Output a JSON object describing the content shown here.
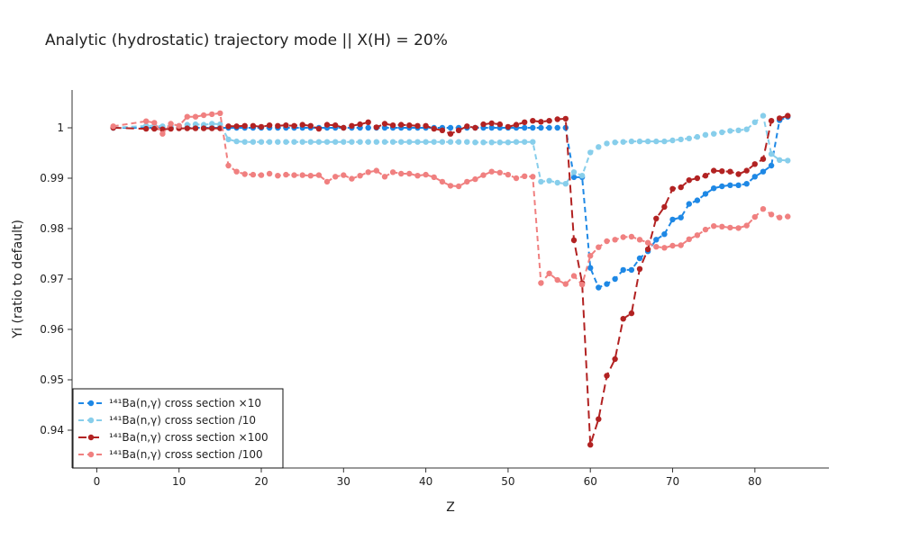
{
  "chart_data": {
    "type": "line",
    "title": "Analytic (hydrostatic) trajectory mode || X(H) = 20%",
    "xlabel": "Z",
    "ylabel": "Yi (ratio to default)",
    "xlim": [
      -3,
      89
    ],
    "ylim": [
      0.9325,
      1.0075
    ],
    "xticks": [
      0,
      10,
      20,
      30,
      40,
      50,
      60,
      70,
      80
    ],
    "yticks": [
      0.94,
      0.95,
      0.96,
      0.97,
      0.98,
      0.99,
      1
    ],
    "ytick_labels": [
      "0.94",
      "0.95",
      "0.96",
      "0.97",
      "0.98",
      "0.99",
      "1"
    ],
    "grid": false,
    "legend_position": "bottom-left",
    "series": [
      {
        "name": "¹⁴¹Ba(n,γ) cross section ×10",
        "color": "#1e88e5",
        "dash": "6,4",
        "x": [
          2,
          6,
          7,
          8,
          9,
          10,
          11,
          12,
          13,
          14,
          15,
          16,
          17,
          18,
          19,
          20,
          21,
          22,
          23,
          24,
          25,
          26,
          27,
          28,
          29,
          30,
          31,
          32,
          33,
          34,
          35,
          36,
          37,
          38,
          39,
          40,
          41,
          42,
          43,
          44,
          45,
          46,
          47,
          48,
          49,
          50,
          51,
          52,
          53,
          54,
          55,
          56,
          57,
          58,
          59,
          60,
          61,
          62,
          63,
          64,
          65,
          66,
          67,
          68,
          69,
          70,
          71,
          72,
          73,
          74,
          75,
          76,
          77,
          78,
          79,
          80,
          81,
          82,
          83,
          84
        ],
        "y": [
          1.0,
          1.0,
          1.0,
          1.0,
          1.0,
          1.0,
          1.0,
          1.0,
          1.0,
          1.0,
          1.0,
          1.0,
          1.0,
          1.0,
          1.0,
          1.0,
          1.0,
          1.0,
          1.0,
          1.0,
          1.0,
          1.0,
          1.0,
          1.0,
          1.0,
          1.0,
          1.0,
          1.0,
          1.0,
          1.0,
          1.0,
          1.0,
          1.0,
          1.0,
          1.0,
          1.0,
          1.0,
          1.0,
          1.0,
          1.0,
          1.0,
          1.0,
          1.0,
          1.0,
          1.0,
          1.0,
          1.0,
          1.0,
          1.0,
          1.0,
          1.0,
          1.0,
          1.0,
          0.9902,
          0.9902,
          0.9722,
          0.9683,
          0.969,
          0.97,
          0.9718,
          0.9718,
          0.9741,
          0.9755,
          0.9778,
          0.9789,
          0.9818,
          0.9822,
          0.9849,
          0.9856,
          0.9869,
          0.988,
          0.9884,
          0.9886,
          0.9886,
          0.9889,
          0.9903,
          0.9913,
          0.9925,
          1.0015,
          1.0022
        ]
      },
      {
        "name": "¹⁴¹Ba(n,γ) cross section /10",
        "color": "#87ceeb",
        "dash": "6,4",
        "x": [
          2,
          6,
          7,
          8,
          9,
          10,
          11,
          12,
          13,
          14,
          15,
          16,
          17,
          18,
          19,
          20,
          21,
          22,
          23,
          24,
          25,
          26,
          27,
          28,
          29,
          30,
          31,
          32,
          33,
          34,
          35,
          36,
          37,
          38,
          39,
          40,
          41,
          42,
          43,
          44,
          45,
          46,
          47,
          48,
          49,
          50,
          51,
          52,
          53,
          54,
          55,
          56,
          57,
          58,
          59,
          60,
          61,
          62,
          63,
          64,
          65,
          66,
          67,
          68,
          69,
          70,
          71,
          72,
          73,
          74,
          75,
          76,
          77,
          78,
          79,
          80,
          81,
          82,
          83,
          84
        ],
        "y": [
          1.0,
          1.0004,
          1.0004,
          1.0003,
          1.0004,
          1.0004,
          1.0006,
          1.0007,
          1.0006,
          1.0008,
          1.0007,
          0.9977,
          0.9973,
          0.9972,
          0.9972,
          0.9972,
          0.9972,
          0.9972,
          0.9972,
          0.9972,
          0.9972,
          0.9972,
          0.9972,
          0.9972,
          0.9972,
          0.9972,
          0.9972,
          0.9972,
          0.9972,
          0.9972,
          0.9972,
          0.9972,
          0.9972,
          0.9972,
          0.9972,
          0.9972,
          0.9972,
          0.9972,
          0.9972,
          0.9972,
          0.9972,
          0.9971,
          0.9971,
          0.9971,
          0.9971,
          0.9971,
          0.9972,
          0.9972,
          0.9972,
          0.9893,
          0.9895,
          0.9891,
          0.9889,
          0.9912,
          0.9905,
          0.9951,
          0.9962,
          0.9969,
          0.9971,
          0.9972,
          0.9973,
          0.9973,
          0.9973,
          0.9973,
          0.9973,
          0.9975,
          0.9977,
          0.9979,
          0.9982,
          0.9986,
          0.9988,
          0.9991,
          0.9994,
          0.9995,
          0.9997,
          1.0011,
          1.0024,
          0.9948,
          0.9936,
          0.9935
        ]
      },
      {
        "name": "¹⁴¹Ba(n,γ) cross section ×100",
        "color": "#b22222",
        "dash": "9,5",
        "x": [
          2,
          6,
          7,
          8,
          9,
          10,
          11,
          12,
          13,
          14,
          15,
          16,
          17,
          18,
          19,
          20,
          21,
          22,
          23,
          24,
          25,
          26,
          27,
          28,
          29,
          30,
          31,
          32,
          33,
          34,
          35,
          36,
          37,
          38,
          39,
          40,
          41,
          42,
          43,
          44,
          45,
          46,
          47,
          48,
          49,
          50,
          51,
          52,
          53,
          54,
          55,
          56,
          57,
          58,
          59,
          60,
          61,
          62,
          63,
          64,
          65,
          66,
          67,
          68,
          69,
          70,
          71,
          72,
          73,
          74,
          75,
          76,
          77,
          78,
          79,
          80,
          81,
          82,
          83,
          84
        ],
        "y": [
          1.0,
          0.9998,
          0.9998,
          0.9997,
          0.9998,
          0.9999,
          0.9999,
          0.9999,
          0.9999,
          0.9999,
          0.9999,
          1.0003,
          1.0003,
          1.0004,
          1.0004,
          1.0002,
          1.0005,
          1.0004,
          1.0005,
          1.0004,
          1.0006,
          1.0004,
          0.9998,
          1.0006,
          1.0005,
          1.0,
          1.0004,
          1.0007,
          1.0011,
          1.0001,
          1.0008,
          1.0005,
          1.0006,
          1.0005,
          1.0004,
          1.0004,
          0.9998,
          0.9995,
          0.9988,
          0.9995,
          1.0003,
          1.0,
          1.0007,
          1.0009,
          1.0007,
          1.0002,
          1.0006,
          1.0011,
          1.0014,
          1.0012,
          1.0014,
          1.0017,
          1.0018,
          0.9777,
          0.9692,
          0.9371,
          0.9422,
          0.9508,
          0.9541,
          0.9621,
          0.9632,
          0.972,
          0.9759,
          0.982,
          0.9843,
          0.9879,
          0.9882,
          0.9896,
          0.99,
          0.9905,
          0.9915,
          0.9914,
          0.9913,
          0.9908,
          0.9915,
          0.9928,
          0.9938,
          1.0014,
          1.0019,
          1.0024
        ]
      },
      {
        "name": "¹⁴¹Ba(n,γ) cross section /100",
        "color": "#f08080",
        "dash": "6,4",
        "x": [
          2,
          6,
          7,
          8,
          9,
          10,
          11,
          12,
          13,
          14,
          15,
          16,
          17,
          18,
          19,
          20,
          21,
          22,
          23,
          24,
          25,
          26,
          27,
          28,
          29,
          30,
          31,
          32,
          33,
          34,
          35,
          36,
          37,
          38,
          39,
          40,
          41,
          42,
          43,
          44,
          45,
          46,
          47,
          48,
          49,
          50,
          51,
          52,
          53,
          54,
          55,
          56,
          57,
          58,
          59,
          60,
          61,
          62,
          63,
          64,
          65,
          66,
          67,
          68,
          69,
          70,
          71,
          72,
          73,
          74,
          75,
          76,
          77,
          78,
          79,
          80,
          81,
          82,
          83,
          84
        ],
        "y": [
          1.0003,
          1.0013,
          1.001,
          0.9988,
          1.0008,
          1.0004,
          1.0022,
          1.0022,
          1.0025,
          1.0027,
          1.0029,
          0.9925,
          0.9913,
          0.9908,
          0.9907,
          0.9906,
          0.9909,
          0.9905,
          0.9907,
          0.9906,
          0.9906,
          0.9905,
          0.9906,
          0.9893,
          0.9903,
          0.9906,
          0.9899,
          0.9905,
          0.9912,
          0.9915,
          0.9903,
          0.9912,
          0.9909,
          0.9909,
          0.9905,
          0.9907,
          0.9902,
          0.9893,
          0.9885,
          0.9884,
          0.9893,
          0.9898,
          0.9906,
          0.9913,
          0.9911,
          0.9907,
          0.99,
          0.9904,
          0.9903,
          0.9692,
          0.9711,
          0.9698,
          0.969,
          0.9706,
          0.9689,
          0.9746,
          0.9763,
          0.9775,
          0.9778,
          0.9783,
          0.9784,
          0.9778,
          0.9772,
          0.9764,
          0.9762,
          0.9766,
          0.9767,
          0.9779,
          0.9787,
          0.9798,
          0.9805,
          0.9804,
          0.9802,
          0.9801,
          0.9806,
          0.9823,
          0.9839,
          0.9828,
          0.9822,
          0.9824
        ]
      }
    ]
  }
}
